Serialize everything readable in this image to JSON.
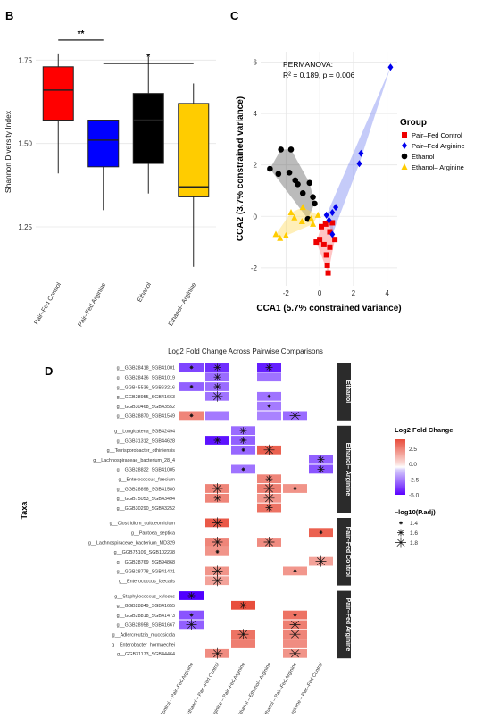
{
  "panels": {
    "b": "B",
    "c": "C",
    "d": "D"
  },
  "chart_data": [
    {
      "type": "box",
      "ylabel": "Shannon Diversity Index",
      "ylim": [
        1.1,
        1.85
      ],
      "yticks": [
        "1.25",
        "1.50",
        "1.75"
      ],
      "grid": true,
      "categories": [
        "Pair–Fed Control",
        "Pair–Fed Arginine",
        "Ethanol",
        "Ethanol– Arginine"
      ],
      "colors": [
        "#ff0000",
        "#0000ff",
        "#000000",
        "#ffcc00"
      ],
      "boxes": [
        {
          "min": 1.41,
          "q1": 1.57,
          "median": 1.66,
          "q3": 1.73,
          "max": 1.77
        },
        {
          "min": 1.3,
          "q1": 1.43,
          "median": 1.51,
          "q3": 1.57,
          "max": 1.57
        },
        {
          "min": 1.35,
          "q1": 1.44,
          "median": 1.57,
          "q3": 1.65,
          "max": 1.76
        },
        {
          "min": 1.13,
          "q1": 1.34,
          "median": 1.37,
          "q3": 1.62,
          "max": 1.68
        }
      ],
      "significance": [
        {
          "from": 0,
          "to": 1,
          "label": "**",
          "y": 1.81
        },
        {
          "from": 1,
          "to": 3,
          "label": "*",
          "y": 1.74
        }
      ]
    },
    {
      "type": "scatter",
      "xlabel": "CCA1 (5.7% constrained variance)",
      "ylabel": "CCA2 (3.7% constrained variance)",
      "xlim": [
        -3.5,
        4.6
      ],
      "ylim": [
        -2.7,
        6.4
      ],
      "xticks": [
        -2,
        0,
        2,
        4
      ],
      "yticks": [
        -2,
        0,
        2,
        4,
        6
      ],
      "annotation": [
        "PERMANOVA:",
        "R² = 0.189, p = 0.006"
      ],
      "legend_title": "Group",
      "legend_position": "right",
      "series": [
        {
          "name": "Pair–Fed Control",
          "color": "#ee0000",
          "shape": "square",
          "points": [
            [
              0.1,
              -0.4
            ],
            [
              0.35,
              -0.3
            ],
            [
              0.6,
              -0.6
            ],
            [
              0.0,
              -0.9
            ],
            [
              0.25,
              -1.1
            ],
            [
              0.6,
              -1.2
            ],
            [
              0.4,
              -1.5
            ],
            [
              0.5,
              -2.2
            ],
            [
              0.45,
              -1.9
            ],
            [
              -0.2,
              -1.0
            ],
            [
              0.9,
              -0.9
            ],
            [
              0.75,
              -0.25
            ]
          ]
        },
        {
          "name": "Pair–Fed Arginine",
          "color": "#0000ee",
          "shape": "diamond",
          "points": [
            [
              4.2,
              5.8
            ],
            [
              2.45,
              2.45
            ],
            [
              2.35,
              2.05
            ],
            [
              0.95,
              0.35
            ],
            [
              0.75,
              0.15
            ],
            [
              0.55,
              -0.15
            ],
            [
              0.4,
              0.05
            ],
            [
              0.75,
              -0.7
            ]
          ]
        },
        {
          "name": "Ethanol",
          "color": "#000000",
          "shape": "circle",
          "points": [
            [
              -2.3,
              2.6
            ],
            [
              -1.7,
              2.6
            ],
            [
              -2.95,
              1.85
            ],
            [
              -2.45,
              1.65
            ],
            [
              -1.8,
              1.7
            ],
            [
              -1.45,
              1.4
            ],
            [
              -1.3,
              1.25
            ],
            [
              -0.6,
              1.3
            ],
            [
              -1.0,
              0.9
            ],
            [
              -0.4,
              0.75
            ],
            [
              -0.3,
              0.5
            ],
            [
              -0.7,
              -0.1
            ]
          ]
        },
        {
          "name": "Ethanol– Arginine",
          "color": "#ffcc00",
          "shape": "triangle",
          "points": [
            [
              -2.6,
              -0.7
            ],
            [
              -2.35,
              -0.85
            ],
            [
              -2.0,
              -0.75
            ],
            [
              -1.7,
              0.15
            ],
            [
              -1.5,
              -0.05
            ],
            [
              -1.0,
              0.35
            ],
            [
              -1.05,
              -0.2
            ],
            [
              -0.5,
              -0.1
            ],
            [
              -0.1,
              0.05
            ],
            [
              -0.4,
              -0.3
            ]
          ]
        }
      ]
    },
    {
      "type": "heatmap",
      "title": "Log2 Fold Change Across Pairwise Comparisons",
      "ylabel": "Taxa",
      "columns": [
        "Pair–Fed Control – Pair–Fed Arginine",
        "Ethanol – Pair–Fed Control",
        "Ethanol– Arginine – Pair–Fed Arginine",
        "Ethanol – Ethanol– Arginine",
        "Ethanol – Pair–Fed Arginine",
        "Ethanol– Arginine – Pair–Fed Control"
      ],
      "legend_title": "Log2 Fold Change",
      "color_ticks": [
        "2.5",
        "0.0",
        "-2.5",
        "-5.0"
      ],
      "color_range": [
        -5,
        4
      ],
      "size_legend_title": "–log10(P.adj)",
      "size_ticks": [
        "1.4",
        "1.6",
        "1.8"
      ],
      "groups": [
        {
          "name": "Ethanol",
          "rows": [
            {
              "taxon": "g__GGB28418_SGB41001",
              "cells": [
                [
                  0,
                  -3.2,
                  1.4
                ],
                [
                  1,
                  -3.8,
                  1.6
                ],
                [
                  3,
                  -4.2,
                  1.6
                ]
              ]
            },
            {
              "taxon": "g__GGB28436_SGB41019",
              "cells": [
                [
                  1,
                  -2.2,
                  1.6
                ],
                [
                  3,
                  -2.0,
                  null
                ]
              ]
            },
            {
              "taxon": "g__GGB45536_SGB63216",
              "cells": [
                [
                  0,
                  -2.5,
                  1.4
                ],
                [
                  1,
                  -2.2,
                  1.6
                ]
              ]
            },
            {
              "taxon": "g__GGB28955_SGB41663",
              "cells": [
                [
                  1,
                  -2.0,
                  1.8
                ],
                [
                  3,
                  -2.0,
                  1.4
                ]
              ]
            },
            {
              "taxon": "g__GGB30468_SGB43552",
              "cells": [
                [
                  3,
                  -1.8,
                  1.4
                ]
              ]
            },
            {
              "taxon": "g__GGB28870_SGB41549",
              "cells": [
                [
                  0,
                  2.0,
                  1.4
                ],
                [
                  1,
                  -1.8,
                  null
                ],
                [
                  3,
                  -1.6,
                  null
                ],
                [
                  4,
                  -2.2,
                  1.8
                ]
              ]
            }
          ]
        },
        {
          "name": "Ethanol– Arginine",
          "rows": [
            {
              "taxon": "g__Longicatena_SGB42494",
              "cells": [
                [
                  2,
                  -2.2,
                  1.6
                ]
              ]
            },
            {
              "taxon": "g__GGB31312_SGB44628",
              "cells": [
                [
                  1,
                  -4.5,
                  1.6
                ],
                [
                  2,
                  -2.5,
                  1.6
                ]
              ]
            },
            {
              "taxon": "g__Terrisporobacter_othiniensis",
              "cells": [
                [
                  2,
                  -2.3,
                  1.4
                ],
                [
                  3,
                  3.0,
                  1.8
                ]
              ]
            },
            {
              "taxon": "g__Lachnospiraceae_bacterium_28_4",
              "cells": [
                [
                  5,
                  -2.5,
                  1.6
                ]
              ]
            },
            {
              "taxon": "g__GGB28822_SGB41005",
              "cells": [
                [
                  2,
                  -2.0,
                  1.4
                ],
                [
                  5,
                  -2.8,
                  1.6
                ]
              ]
            },
            {
              "taxon": "g__Enterococcus_faecium",
              "cells": [
                [
                  3,
                  2.0,
                  1.6
                ]
              ]
            },
            {
              "taxon": "g__GGB28898_SGB41580",
              "cells": [
                [
                  1,
                  2.0,
                  1.8
                ],
                [
                  3,
                  2.2,
                  1.8
                ],
                [
                  4,
                  1.6,
                  1.4
                ]
              ]
            },
            {
              "taxon": "g__GGB75053_SGB43494",
              "cells": [
                [
                  1,
                  2.0,
                  1.6
                ],
                [
                  3,
                  1.6,
                  1.8
                ]
              ]
            },
            {
              "taxon": "g__GGB30290_SGB43252",
              "cells": [
                [
                  3,
                  2.5,
                  1.6
                ]
              ]
            }
          ]
        },
        {
          "name": "Pair–Fed Control",
          "rows": [
            {
              "taxon": "g__Clostridium_cultueomicium",
              "cells": [
                [
                  1,
                  3.2,
                  1.8
                ]
              ]
            },
            {
              "taxon": "g__Pantoea_septica",
              "cells": [
                [
                  5,
                  3.0,
                  1.4
                ]
              ]
            },
            {
              "taxon": "g__Lachnospiraceae_bacterium_MD329",
              "cells": [
                [
                  1,
                  2.0,
                  1.8
                ],
                [
                  3,
                  1.8,
                  1.8
                ]
              ]
            },
            {
              "taxon": "g__GGB75109_SGB102238",
              "cells": [
                [
                  1,
                  1.6,
                  1.4
                ]
              ]
            },
            {
              "taxon": "g__GGB28769_SGB94868",
              "cells": [
                [
                  5,
                  1.2,
                  1.8
                ]
              ]
            },
            {
              "taxon": "g__GGB28778_SGB41431",
              "cells": [
                [
                  1,
                  1.6,
                  1.8
                ],
                [
                  4,
                  1.5,
                  1.4
                ]
              ]
            },
            {
              "taxon": "g__Enterococcus_faecalis",
              "cells": [
                [
                  1,
                  1.2,
                  1.8
                ]
              ]
            }
          ]
        },
        {
          "name": "Pair–Fed Arginine",
          "rows": [
            {
              "taxon": "g__Staphylococcus_xylosus",
              "cells": [
                [
                  0,
                  -5.0,
                  1.6
                ]
              ]
            },
            {
              "taxon": "g__GGB28849_SGB41655",
              "cells": [
                [
                  2,
                  3.5,
                  1.6
                ]
              ]
            },
            {
              "taxon": "g__GGB28818_SGB41473",
              "cells": [
                [
                  0,
                  -2.8,
                  1.4
                ],
                [
                  4,
                  2.5,
                  1.4
                ]
              ]
            },
            {
              "taxon": "g__GGB28958_SGB41667",
              "cells": [
                [
                  0,
                  -2.5,
                  1.8
                ],
                [
                  4,
                  2.2,
                  1.8
                ]
              ]
            },
            {
              "taxon": "g__Adlercreutzia_mucosicola",
              "cells": [
                [
                  2,
                  2.5,
                  1.8
                ],
                [
                  4,
                  2.0,
                  1.8
                ]
              ]
            },
            {
              "taxon": "g__Enterobacter_hormaechei",
              "cells": [
                [
                  2,
                  2.2,
                  null
                ],
                [
                  4,
                  1.8,
                  null
                ]
              ]
            },
            {
              "taxon": "g__GGB31173_SGB44464",
              "cells": [
                [
                  1,
                  1.8,
                  1.8
                ],
                [
                  4,
                  1.6,
                  1.8
                ]
              ]
            }
          ]
        }
      ]
    }
  ]
}
